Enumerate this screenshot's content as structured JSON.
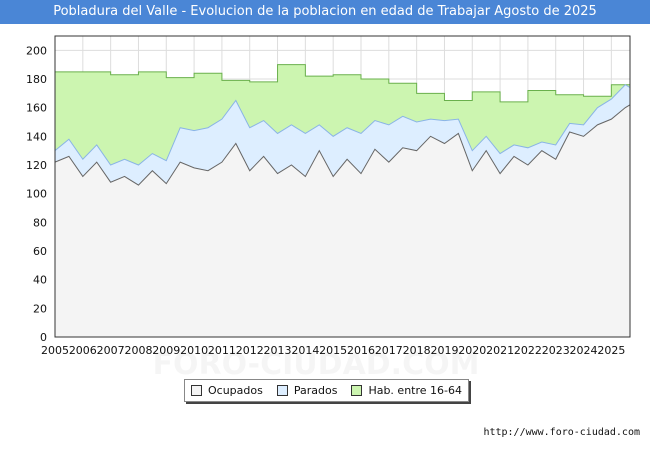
{
  "title": "Pobladura del Valle - Evolucion de la poblacion en edad de Trabajar Agosto de 2025",
  "source_url": "http://www.foro-ciudad.com",
  "watermark": "FORO-CIUDAD.COM",
  "colors": {
    "title_bg": "#4a86d6",
    "hab": "#ccf5b0",
    "hab_line": "#6ab04c",
    "parados": "#ddeeff",
    "parados_line": "#8ab4e6",
    "ocupados": "#f4f4f4",
    "ocupados_line": "#666666",
    "grid": "#dddddd"
  },
  "chart_data": {
    "type": "area",
    "xlim": [
      2005,
      2025.67
    ],
    "ylim": [
      0,
      210
    ],
    "x_ticks": [
      2005,
      2006,
      2007,
      2008,
      2009,
      2010,
      2011,
      2012,
      2013,
      2014,
      2015,
      2016,
      2017,
      2018,
      2019,
      2020,
      2021,
      2022,
      2023,
      2024,
      2025
    ],
    "y_ticks": [
      0,
      20,
      40,
      60,
      80,
      100,
      120,
      140,
      160,
      180,
      200
    ],
    "grid": true,
    "legend_position": "bottom-center",
    "series": [
      {
        "name": "Ocupados",
        "x": [
          2005.0,
          2005.5,
          2006.0,
          2006.5,
          2007.0,
          2007.5,
          2008.0,
          2008.5,
          2009.0,
          2009.5,
          2010.0,
          2010.5,
          2011.0,
          2011.5,
          2012.0,
          2012.5,
          2013.0,
          2013.5,
          2014.0,
          2014.5,
          2015.0,
          2015.5,
          2016.0,
          2016.5,
          2017.0,
          2017.5,
          2018.0,
          2018.5,
          2019.0,
          2019.5,
          2020.0,
          2020.5,
          2021.0,
          2021.5,
          2022.0,
          2022.5,
          2023.0,
          2023.5,
          2024.0,
          2024.5,
          2025.0,
          2025.5,
          2025.67
        ],
        "values": [
          122,
          126,
          112,
          122,
          108,
          112,
          106,
          116,
          107,
          122,
          118,
          116,
          122,
          135,
          116,
          126,
          114,
          120,
          112,
          130,
          112,
          124,
          114,
          131,
          122,
          132,
          130,
          140,
          135,
          142,
          116,
          130,
          114,
          126,
          120,
          130,
          124,
          143,
          140,
          148,
          152,
          160,
          162
        ]
      },
      {
        "name": "Parados",
        "x": [
          2005.0,
          2005.5,
          2006.0,
          2006.5,
          2007.0,
          2007.5,
          2008.0,
          2008.5,
          2009.0,
          2009.5,
          2010.0,
          2010.5,
          2011.0,
          2011.5,
          2012.0,
          2012.5,
          2013.0,
          2013.5,
          2014.0,
          2014.5,
          2015.0,
          2015.5,
          2016.0,
          2016.5,
          2017.0,
          2017.5,
          2018.0,
          2018.5,
          2019.0,
          2019.5,
          2020.0,
          2020.5,
          2021.0,
          2021.5,
          2022.0,
          2022.5,
          2023.0,
          2023.5,
          2024.0,
          2024.5,
          2025.0,
          2025.5,
          2025.67
        ],
        "values": [
          8,
          12,
          12,
          12,
          12,
          12,
          14,
          12,
          16,
          24,
          26,
          30,
          30,
          30,
          30,
          25,
          28,
          28,
          30,
          18,
          28,
          22,
          28,
          20,
          26,
          22,
          20,
          12,
          16,
          10,
          14,
          10,
          14,
          8,
          12,
          6,
          10,
          6,
          8,
          12,
          14,
          16,
          12
        ]
      },
      {
        "name": "Hab. entre 16-64",
        "x": [
          2005.0,
          2006.0,
          2007.0,
          2008.0,
          2009.0,
          2010.0,
          2011.0,
          2012.0,
          2013.0,
          2014.0,
          2015.0,
          2016.0,
          2017.0,
          2018.0,
          2019.0,
          2020.0,
          2021.0,
          2022.0,
          2023.0,
          2024.0,
          2025.0,
          2025.67
        ],
        "values": [
          185,
          185,
          183,
          185,
          181,
          184,
          179,
          178,
          190,
          182,
          183,
          180,
          177,
          170,
          165,
          171,
          164,
          172,
          169,
          168,
          176,
          174
        ]
      }
    ]
  }
}
